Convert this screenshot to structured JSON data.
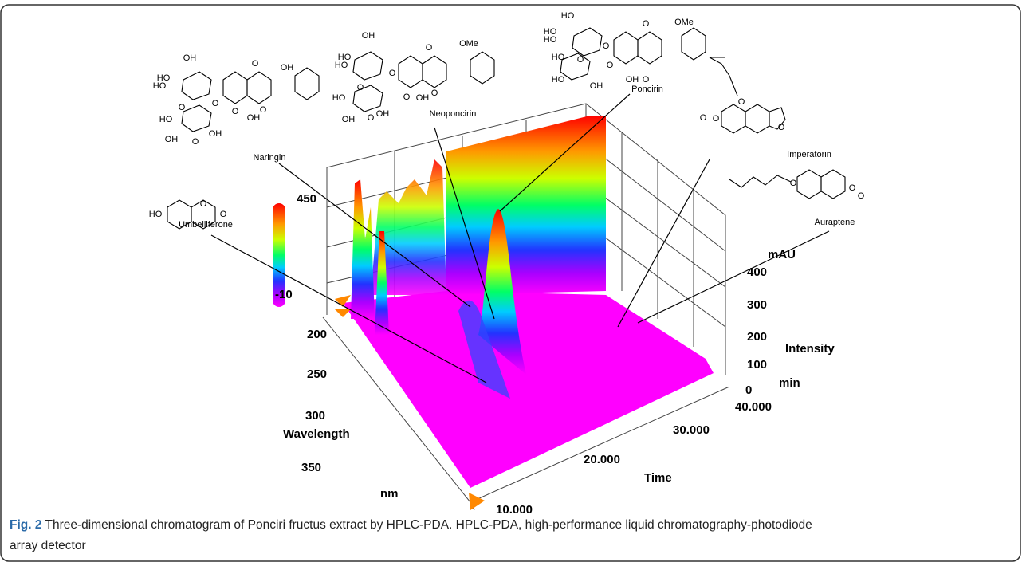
{
  "figure": {
    "peaks": [
      "Umbelliferone",
      "Naringin",
      "Neoponcirin",
      "Poncirin",
      "Imperatorin",
      "Auraptene"
    ],
    "color_scale": {
      "max": 450,
      "min": -10
    },
    "wavelength_axis": {
      "title": "Wavelength",
      "unit": "nm",
      "ticks": [
        200,
        250,
        300,
        350
      ]
    },
    "time_axis": {
      "title": "Time",
      "unit": "min",
      "ticks": [
        "10.000",
        "20.000",
        "30.000",
        "40.000"
      ]
    },
    "intensity_axis": {
      "title": "Intensity",
      "unit": "mAU",
      "ticks": [
        0,
        100,
        200,
        300,
        400
      ]
    },
    "structures": {
      "umbelliferone": [
        "HO",
        "O",
        "O"
      ],
      "naringin": [
        "OH",
        "HO",
        "HO",
        "O",
        "O",
        "O",
        "OH",
        "O",
        "O",
        "HO",
        "OH",
        "OH",
        "OH",
        "O"
      ],
      "neoponcirin": [
        "OH",
        "HO",
        "HO",
        "O",
        "O",
        "O",
        "OMe",
        "O",
        "O",
        "HO",
        "OH",
        "OH",
        "OH",
        "O"
      ],
      "poncirin": [
        "HO",
        "HO",
        "HO",
        "O",
        "O",
        "O",
        "OMe",
        "O",
        "HO",
        "HO",
        "OH",
        "OH",
        "O"
      ],
      "imperatorin": [
        "O",
        "O",
        "O",
        "O"
      ],
      "auraptene": [
        "O",
        "O",
        "O"
      ]
    }
  },
  "caption": {
    "label": "Fig. 2",
    "text": "Three-dimensional chromatogram of Ponciri fructus extract by HPLC-PDA. HPLC-PDA, high-performance liquid chromatography-photodiode",
    "text_cont": "array detector"
  }
}
